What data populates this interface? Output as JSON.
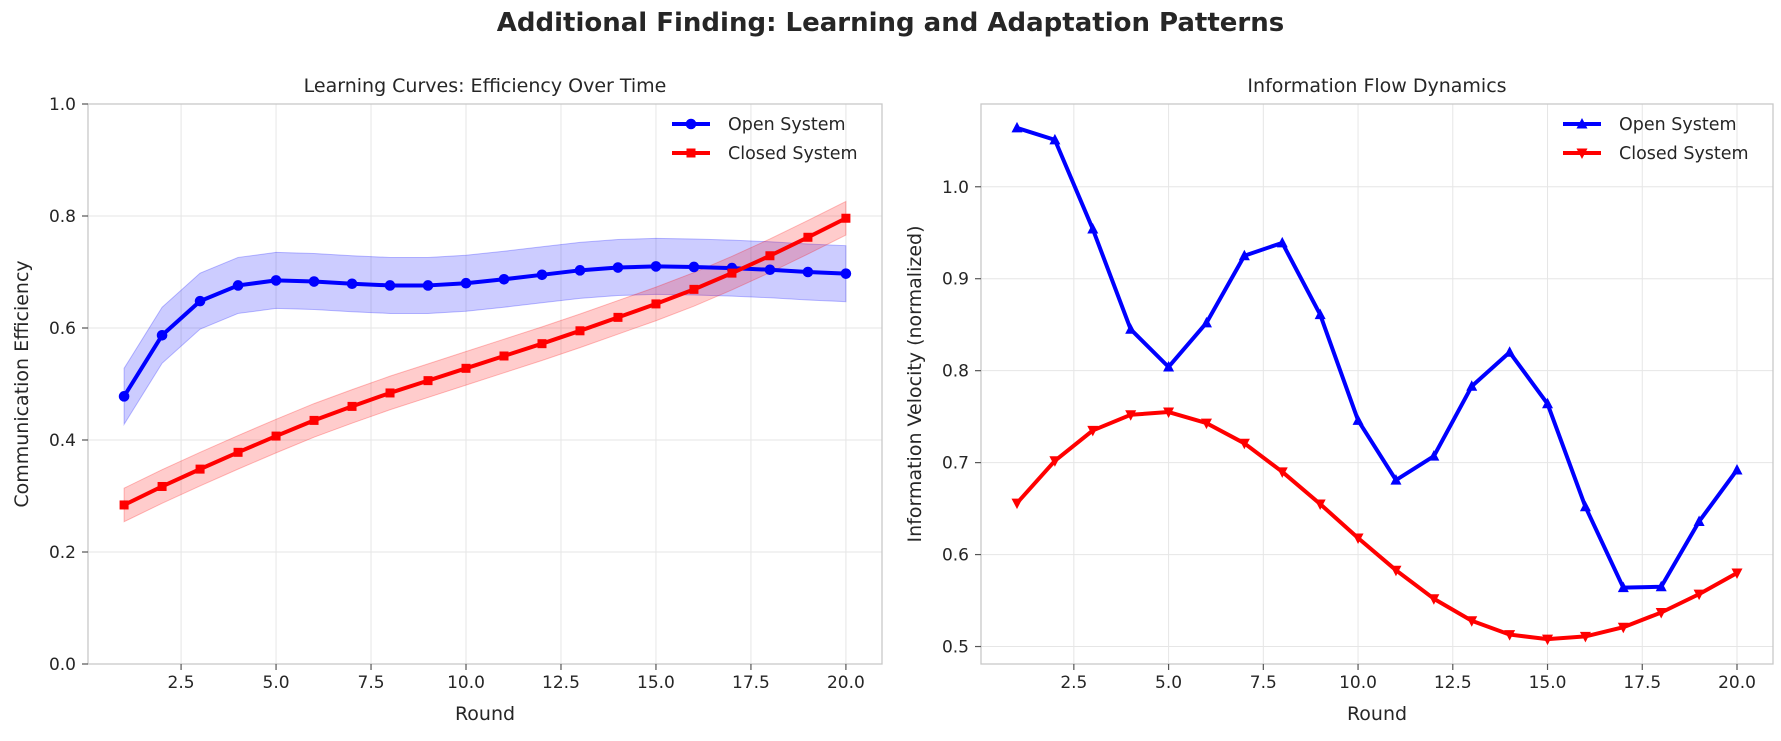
{
  "suptitle": "Additional Finding: Learning and Adaptation Patterns",
  "chart_data": [
    {
      "type": "line",
      "title": "Learning Curves: Efficiency Over Time",
      "xlabel": "Round",
      "ylabel": "Communication Efficiency",
      "xlim": [
        0.05,
        20.95
      ],
      "ylim": [
        0.0,
        1.0
      ],
      "xticks": [
        2.5,
        5.0,
        7.5,
        10.0,
        12.5,
        15.0,
        17.5,
        20.0
      ],
      "xtick_labels": [
        "2.5",
        "5.0",
        "7.5",
        "10.0",
        "12.5",
        "15.0",
        "17.5",
        "20.0"
      ],
      "yticks": [
        0.0,
        0.2,
        0.4,
        0.6,
        0.8,
        1.0
      ],
      "ytick_labels": [
        "0.0",
        "0.2",
        "0.4",
        "0.6",
        "0.8",
        "1.0"
      ],
      "grid": true,
      "legend_position": "top-right",
      "x": [
        1,
        2,
        3,
        4,
        5,
        6,
        7,
        8,
        9,
        10,
        11,
        12,
        13,
        14,
        15,
        16,
        17,
        18,
        19,
        20
      ],
      "series": [
        {
          "name": "Open System",
          "color": "#0000ff",
          "marker": "circle",
          "values": [
            0.478,
            0.587,
            0.648,
            0.676,
            0.685,
            0.683,
            0.679,
            0.676,
            0.676,
            0.68,
            0.687,
            0.695,
            0.703,
            0.708,
            0.71,
            0.709,
            0.707,
            0.704,
            0.7,
            0.697
          ],
          "band": 0.05
        },
        {
          "name": "Closed System",
          "color": "#ff0000",
          "marker": "square",
          "values": [
            0.284,
            0.317,
            0.348,
            0.378,
            0.407,
            0.435,
            0.46,
            0.484,
            0.506,
            0.528,
            0.55,
            0.572,
            0.595,
            0.619,
            0.643,
            0.669,
            0.698,
            0.729,
            0.762,
            0.796
          ],
          "band": 0.03
        }
      ]
    },
    {
      "type": "line",
      "title": "Information Flow Dynamics",
      "xlabel": "Round",
      "ylabel": "Information Velocity (normalized)",
      "xlim": [
        0.05,
        20.95
      ],
      "ylim": [
        0.481,
        1.09
      ],
      "xticks": [
        2.5,
        5.0,
        7.5,
        10.0,
        12.5,
        15.0,
        17.5,
        20.0
      ],
      "xtick_labels": [
        "2.5",
        "5.0",
        "7.5",
        "10.0",
        "12.5",
        "15.0",
        "17.5",
        "20.0"
      ],
      "yticks": [
        0.5,
        0.6,
        0.7,
        0.8,
        0.9,
        1.0
      ],
      "ytick_labels": [
        "0.5",
        "0.6",
        "0.7",
        "0.8",
        "0.9",
        "1.0"
      ],
      "grid": true,
      "legend_position": "top-right",
      "x": [
        1,
        2,
        3,
        4,
        5,
        6,
        7,
        8,
        9,
        10,
        11,
        12,
        13,
        14,
        15,
        16,
        17,
        18,
        19,
        20
      ],
      "series": [
        {
          "name": "Open System",
          "color": "#0000ff",
          "marker": "triangle-up",
          "values": [
            1.064,
            1.051,
            0.954,
            0.845,
            0.804,
            0.852,
            0.925,
            0.939,
            0.861,
            0.746,
            0.681,
            0.707,
            0.783,
            0.82,
            0.764,
            0.652,
            0.564,
            0.565,
            0.636,
            0.692
          ]
        },
        {
          "name": "Closed System",
          "color": "#ff0000",
          "marker": "triangle-down",
          "values": [
            0.656,
            0.702,
            0.735,
            0.752,
            0.755,
            0.743,
            0.721,
            0.69,
            0.655,
            0.618,
            0.583,
            0.552,
            0.528,
            0.513,
            0.508,
            0.511,
            0.521,
            0.537,
            0.557,
            0.58
          ]
        }
      ]
    }
  ]
}
